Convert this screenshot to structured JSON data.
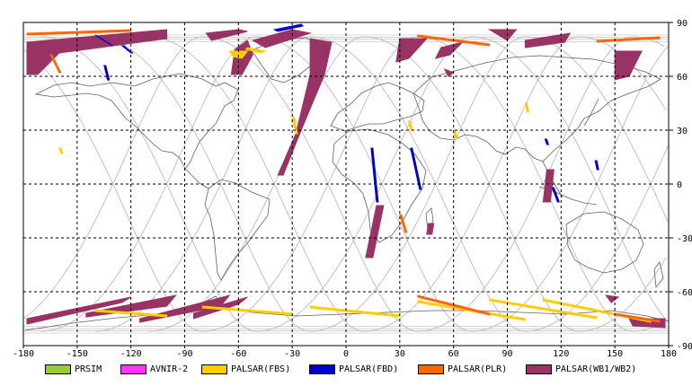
{
  "map": {
    "lon_ticks": [
      "-180",
      "-150",
      "-120",
      "-90",
      "-60",
      "-30",
      "0",
      "30",
      "60",
      "90",
      "120",
      "150",
      "180"
    ],
    "lat_ticks": [
      "90",
      "60",
      "30",
      "0",
      "-30",
      "-60",
      "-90"
    ],
    "lon_range": [
      -180,
      180
    ],
    "lat_range": [
      -90,
      90
    ],
    "grid": "dashed",
    "colors": {
      "frame": "#000000",
      "grid": "#000000",
      "coastline": "#606060",
      "orbit": "#b4b4b4"
    }
  },
  "legend": {
    "items": [
      {
        "label": "PRSIM",
        "color": "#99cc33"
      },
      {
        "label": "AVNIR-2",
        "color": "#ff33ff"
      },
      {
        "label": "PALSAR(FBS)",
        "color": "#ffcc00"
      },
      {
        "label": "PALSAR(FBD)",
        "color": "#0000cc"
      },
      {
        "label": "PALSAR(PLR)",
        "color": "#ff6600"
      },
      {
        "label": "PALSAR(WB1/WB2)",
        "color": "#993366"
      }
    ]
  },
  "swaths": [
    {
      "mode": "PALSAR(WB1/WB2)",
      "path": [
        [
          -178,
          79
        ],
        [
          -100,
          86
        ],
        [
          -100,
          81
        ],
        [
          -160,
          73
        ],
        [
          -172,
          61
        ],
        [
          -178,
          61
        ]
      ]
    },
    {
      "mode": "PALSAR(WB1/WB2)",
      "path": [
        [
          -78,
          84
        ],
        [
          -60,
          86
        ],
        [
          -55,
          85
        ],
        [
          -75,
          80
        ]
      ]
    },
    {
      "mode": "PALSAR(WB1/WB2)",
      "path": [
        [
          -52,
          80
        ],
        [
          -30,
          86
        ],
        [
          -20,
          84
        ],
        [
          -45,
          76
        ]
      ]
    },
    {
      "mode": "PALSAR(WB1/WB2)",
      "path": [
        [
          -62,
          75
        ],
        [
          -55,
          80
        ],
        [
          -52,
          72
        ],
        [
          -58,
          61
        ],
        [
          -64,
          61
        ]
      ]
    },
    {
      "mode": "PALSAR(WB1/WB2)",
      "path": [
        [
          -20,
          81
        ],
        [
          -8,
          79
        ],
        [
          -12,
          61
        ],
        [
          -25,
          30
        ],
        [
          -35,
          5
        ],
        [
          -38,
          5
        ],
        [
          -28,
          28
        ],
        [
          -20,
          61
        ]
      ]
    },
    {
      "mode": "PALSAR(WB1/WB2)",
      "path": [
        [
          30,
          81
        ],
        [
          45,
          81
        ],
        [
          35,
          70
        ],
        [
          28,
          68
        ]
      ]
    },
    {
      "mode": "PALSAR(WB1/WB2)",
      "path": [
        [
          53,
          76
        ],
        [
          65,
          79
        ],
        [
          58,
          72
        ],
        [
          50,
          70
        ]
      ]
    },
    {
      "mode": "PALSAR(WB1/WB2)",
      "path": [
        [
          80,
          86
        ],
        [
          95,
          86
        ],
        [
          90,
          80
        ]
      ]
    },
    {
      "mode": "PALSAR(WB1/WB2)",
      "path": [
        [
          100,
          80
        ],
        [
          125,
          84
        ],
        [
          122,
          79
        ],
        [
          100,
          76
        ]
      ]
    },
    {
      "mode": "PALSAR(WB1/WB2)",
      "path": [
        [
          150,
          74
        ],
        [
          165,
          74
        ],
        [
          158,
          60
        ],
        [
          150,
          58
        ]
      ]
    },
    {
      "mode": "PALSAR(WB1/WB2)",
      "path": [
        [
          55,
          64
        ],
        [
          60,
          62
        ],
        [
          57,
          60
        ]
      ]
    },
    {
      "mode": "PALSAR(WB1/WB2)",
      "path": [
        [
          112,
          8
        ],
        [
          116,
          8
        ],
        [
          114,
          -10
        ],
        [
          110,
          -10
        ]
      ]
    },
    {
      "mode": "PALSAR(WB1/WB2)",
      "path": [
        [
          17,
          -12
        ],
        [
          21,
          -12
        ],
        [
          15,
          -41
        ],
        [
          11,
          -41
        ]
      ]
    },
    {
      "mode": "PALSAR(WB1/WB2)",
      "path": [
        [
          46,
          -22
        ],
        [
          49,
          -22
        ],
        [
          48,
          -28
        ],
        [
          45,
          -28
        ]
      ]
    },
    {
      "mode": "PALSAR(WB1/WB2)",
      "path": [
        [
          -178,
          -75
        ],
        [
          -120,
          -63
        ],
        [
          -125,
          -66
        ],
        [
          -178,
          -78
        ]
      ]
    },
    {
      "mode": "PALSAR(WB1/WB2)",
      "path": [
        [
          -145,
          -72
        ],
        [
          -95,
          -62
        ],
        [
          -100,
          -68
        ],
        [
          -145,
          -74
        ]
      ]
    },
    {
      "mode": "PALSAR(WB1/WB2)",
      "path": [
        [
          -115,
          -75
        ],
        [
          -65,
          -62
        ],
        [
          -70,
          -68
        ],
        [
          -115,
          -77
        ]
      ]
    },
    {
      "mode": "PALSAR(WB1/WB2)",
      "path": [
        [
          -85,
          -72
        ],
        [
          -55,
          -63
        ],
        [
          -60,
          -67
        ],
        [
          -85,
          -75
        ]
      ]
    },
    {
      "mode": "PALSAR(WB1/WB2)",
      "path": [
        [
          145,
          -62
        ],
        [
          152,
          -63
        ],
        [
          148,
          -66
        ]
      ]
    },
    {
      "mode": "PALSAR(WB1/WB2)",
      "path": [
        [
          158,
          -75
        ],
        [
          178,
          -75
        ],
        [
          178,
          -80
        ],
        [
          160,
          -79
        ]
      ]
    },
    {
      "mode": "PALSAR(FBD)",
      "path": [
        [
          -140,
          83
        ],
        [
          -132,
          78
        ],
        [
          -130,
          77
        ],
        [
          -138,
          82
        ]
      ]
    },
    {
      "mode": "PALSAR(FBD)",
      "path": [
        [
          -125,
          77
        ],
        [
          -120,
          73
        ],
        [
          -119,
          73
        ],
        [
          -124,
          77
        ]
      ]
    },
    {
      "mode": "PALSAR(FBD)",
      "path": [
        [
          -135,
          66
        ],
        [
          -133,
          58
        ],
        [
          -132,
          58
        ],
        [
          -134,
          66
        ]
      ]
    },
    {
      "mode": "PALSAR(FBD)",
      "path": [
        [
          -40,
          86
        ],
        [
          -25,
          89
        ],
        [
          -24,
          88
        ],
        [
          -38,
          85
        ]
      ]
    },
    {
      "mode": "PALSAR(FBD)",
      "path": [
        [
          14,
          20
        ],
        [
          17,
          -10
        ],
        [
          18,
          -10
        ],
        [
          15,
          20
        ]
      ]
    },
    {
      "mode": "PALSAR(FBD)",
      "path": [
        [
          36,
          20
        ],
        [
          41,
          -3
        ],
        [
          42,
          -3
        ],
        [
          37,
          20
        ]
      ]
    },
    {
      "mode": "PALSAR(FBD)",
      "path": [
        [
          111,
          25
        ],
        [
          112,
          22
        ],
        [
          113,
          22
        ],
        [
          112,
          25
        ]
      ]
    },
    {
      "mode": "PALSAR(FBD)",
      "path": [
        [
          115,
          -2
        ],
        [
          118,
          -10
        ],
        [
          119,
          -10
        ],
        [
          116,
          -2
        ]
      ]
    },
    {
      "mode": "PALSAR(FBD)",
      "path": [
        [
          139,
          13
        ],
        [
          140,
          8
        ],
        [
          141,
          8
        ],
        [
          140,
          13
        ]
      ]
    },
    {
      "mode": "PALSAR(FBS)",
      "path": [
        [
          -65,
          74
        ],
        [
          -55,
          74
        ],
        [
          -58,
          70
        ],
        [
          -63,
          71
        ]
      ]
    },
    {
      "mode": "PALSAR(FBS)",
      "path": [
        [
          -55,
          76
        ],
        [
          -45,
          74
        ],
        [
          -48,
          73
        ],
        [
          -56,
          75
        ]
      ]
    },
    {
      "mode": "PALSAR(FBS)",
      "path": [
        [
          -30,
          37
        ],
        [
          -28,
          28
        ],
        [
          -27,
          28
        ],
        [
          -29,
          37
        ]
      ]
    },
    {
      "mode": "PALSAR(FBS)",
      "path": [
        [
          -160,
          20
        ],
        [
          -159,
          17
        ],
        [
          -158,
          17
        ],
        [
          -159,
          20
        ]
      ]
    },
    {
      "mode": "PALSAR(FBS)",
      "path": [
        [
          35,
          35
        ],
        [
          36,
          30
        ],
        [
          37,
          30
        ],
        [
          36,
          35
        ]
      ]
    },
    {
      "mode": "PALSAR(FBS)",
      "path": [
        [
          60,
          30
        ],
        [
          61,
          25
        ],
        [
          62,
          25
        ],
        [
          61,
          30
        ]
      ]
    },
    {
      "mode": "PALSAR(FBS)",
      "path": [
        [
          100,
          45
        ],
        [
          101,
          40
        ],
        [
          102,
          40
        ],
        [
          101,
          45
        ]
      ]
    },
    {
      "mode": "PALSAR(FBS)",
      "path": [
        [
          -80,
          -68
        ],
        [
          -30,
          -72
        ],
        [
          -30,
          -73
        ],
        [
          -80,
          -69
        ]
      ]
    },
    {
      "mode": "PALSAR(FBS)",
      "path": [
        [
          -20,
          -68
        ],
        [
          30,
          -73
        ],
        [
          30,
          -74
        ],
        [
          -20,
          -69
        ]
      ]
    },
    {
      "mode": "PALSAR(FBS)",
      "path": [
        [
          40,
          -65
        ],
        [
          100,
          -75
        ],
        [
          100,
          -76
        ],
        [
          40,
          -66
        ]
      ]
    },
    {
      "mode": "PALSAR(FBS)",
      "path": [
        [
          80,
          -64
        ],
        [
          140,
          -74
        ],
        [
          140,
          -75
        ],
        [
          80,
          -65
        ]
      ]
    },
    {
      "mode": "PALSAR(FBS)",
      "path": [
        [
          110,
          -64
        ],
        [
          170,
          -76
        ],
        [
          170,
          -77
        ],
        [
          110,
          -65
        ]
      ]
    },
    {
      "mode": "PALSAR(FBS)",
      "path": [
        [
          -140,
          -70
        ],
        [
          -100,
          -73
        ],
        [
          -100,
          -74
        ],
        [
          -140,
          -71
        ]
      ]
    },
    {
      "mode": "PALSAR(PLR)",
      "path": [
        [
          -178,
          84
        ],
        [
          -120,
          86
        ],
        [
          -120,
          85
        ],
        [
          -178,
          83
        ]
      ]
    },
    {
      "mode": "PALSAR(PLR)",
      "path": [
        [
          40,
          83
        ],
        [
          80,
          78
        ],
        [
          80,
          77
        ],
        [
          40,
          82
        ]
      ]
    },
    {
      "mode": "PALSAR(PLR)",
      "path": [
        [
          140,
          80
        ],
        [
          175,
          82
        ],
        [
          175,
          81
        ],
        [
          140,
          79
        ]
      ]
    },
    {
      "mode": "PALSAR(PLR)",
      "path": [
        [
          -165,
          72
        ],
        [
          -160,
          62
        ],
        [
          -159,
          62
        ],
        [
          -164,
          72
        ]
      ]
    },
    {
      "mode": "PALSAR(PLR)",
      "path": [
        [
          30,
          -17
        ],
        [
          33,
          -27
        ],
        [
          34,
          -27
        ],
        [
          31,
          -17
        ]
      ]
    },
    {
      "mode": "PALSAR(PLR)",
      "path": [
        [
          40,
          -62
        ],
        [
          80,
          -72
        ],
        [
          80,
          -73
        ],
        [
          40,
          -63
        ]
      ]
    },
    {
      "mode": "PALSAR(PLR)",
      "path": [
        [
          150,
          -72
        ],
        [
          175,
          -76
        ],
        [
          175,
          -77
        ],
        [
          150,
          -73
        ]
      ]
    }
  ]
}
